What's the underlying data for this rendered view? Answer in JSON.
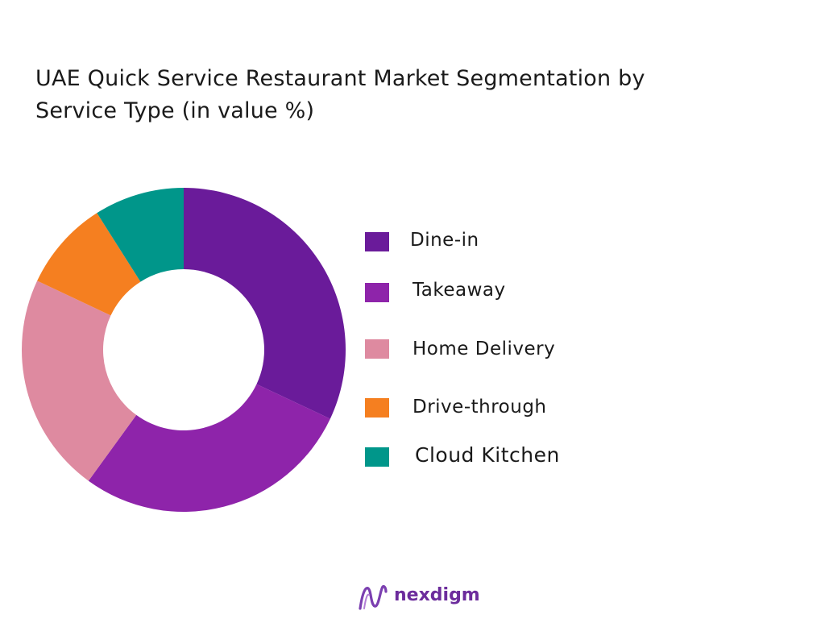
{
  "title": {
    "line1": "UAE Quick Service Restaurant Market Segmentation by",
    "line2": "Service Type  (in value %)"
  },
  "chart_data": {
    "type": "pie",
    "variant": "donut",
    "title": "UAE Quick Service Restaurant Market Segmentation by Service Type  (in value %)",
    "legend_position": "right",
    "categories": [
      "Dine-in",
      "Takeaway",
      "Home Delivery",
      "Drive-through",
      "Cloud Kitchen"
    ],
    "values": [
      32,
      28,
      22,
      9,
      9
    ],
    "colors": [
      "#6a1b9a",
      "#8e24aa",
      "#de8aa0",
      "#f57f20",
      "#00968a"
    ]
  },
  "brand": {
    "name": "nexdigm",
    "logo_icon": "nexdigm-logo-icon",
    "color": "#6c2c9c"
  }
}
